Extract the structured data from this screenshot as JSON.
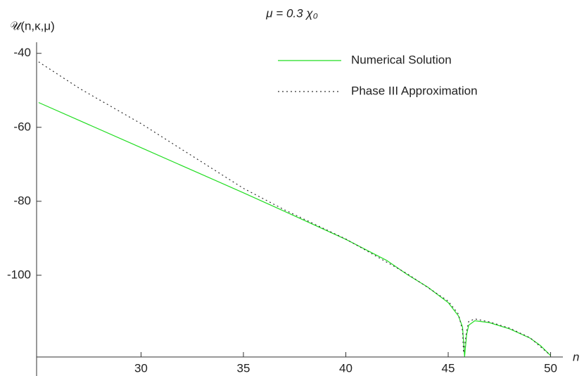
{
  "chart_data": {
    "type": "line",
    "title": "μ = 0.3 χ₀",
    "y_label": "𝒰(n,κ,μ)",
    "x_label": "n",
    "xlim": [
      24.9,
      50.6
    ],
    "ylim": [
      -122.1,
      -37
    ],
    "xticks": [
      30,
      35,
      40,
      45,
      50
    ],
    "yticks": [
      -40,
      -60,
      -80,
      -100
    ],
    "legend_position": "upper right",
    "series": [
      {
        "name": "Numerical Solution",
        "color": "#22dd22",
        "dash": "solid",
        "x": [
          25,
          30,
          35,
          37,
          40,
          42,
          43,
          44,
          45,
          45.5,
          45.7,
          45.8,
          45.9,
          46,
          46.3,
          47,
          48,
          49,
          49.5,
          50
        ],
        "values": [
          -53.3,
          -65.5,
          -77.7,
          -82.7,
          -90.3,
          -96,
          -99.8,
          -103.2,
          -107.4,
          -111,
          -114,
          -122,
          -116,
          -113.5,
          -112.3,
          -112.8,
          -114.5,
          -117,
          -119,
          -121.7
        ]
      },
      {
        "name": "Phase III Approximation",
        "color": "#333333",
        "dash": "dotted",
        "x": [
          25,
          27,
          30,
          33,
          35,
          37,
          40,
          43,
          45,
          45.5,
          45.7,
          45.75,
          45.9,
          46,
          46.3,
          47,
          48,
          49,
          50
        ],
        "values": [
          -42.3,
          -49.5,
          -59,
          -69.5,
          -76.5,
          -82.3,
          -90.2,
          -99.6,
          -107,
          -110.5,
          -115,
          -121,
          -115,
          -112.5,
          -111.8,
          -112.6,
          -114.3,
          -116.9,
          -121.7
        ]
      }
    ]
  }
}
